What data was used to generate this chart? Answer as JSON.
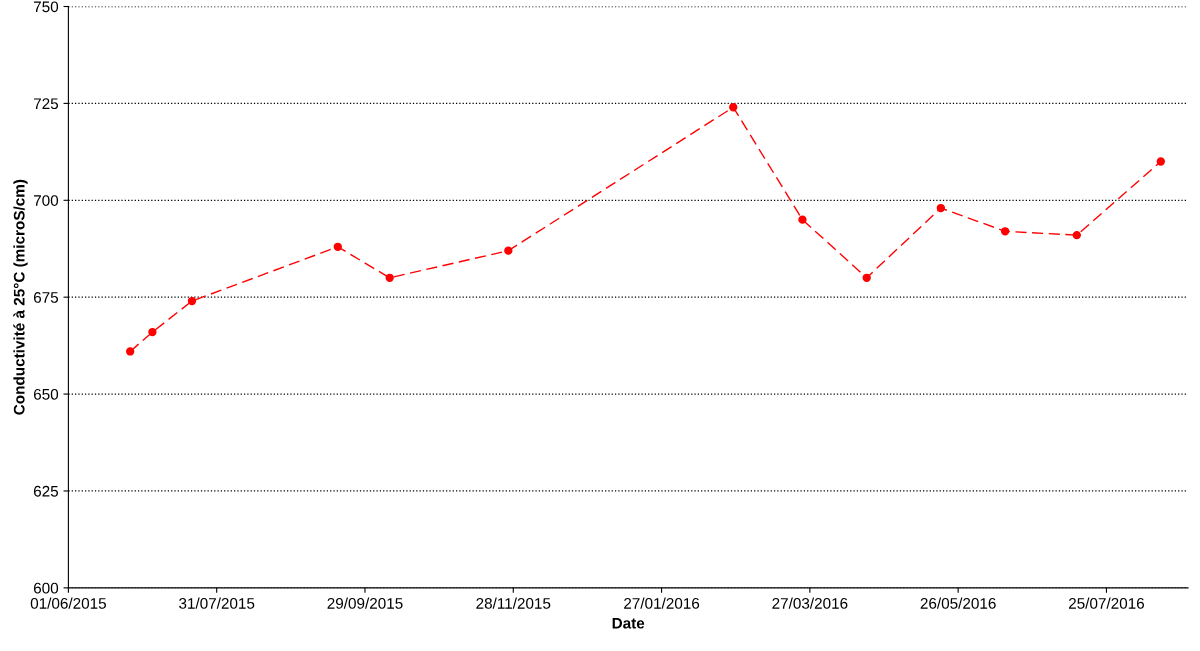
{
  "chart_data": {
    "type": "line",
    "xlabel": "Date",
    "ylabel": "Conductivité à 25°C (microS/cm)",
    "x": [
      "2015-06-26",
      "2015-07-05",
      "2015-07-21",
      "2015-09-18",
      "2015-10-09",
      "2015-11-26",
      "2016-02-25",
      "2016-03-24",
      "2016-04-19",
      "2016-05-19",
      "2016-06-14",
      "2016-07-13",
      "2016-08-16"
    ],
    "series": [
      {
        "color": "#ff0000",
        "values": [
          661,
          666,
          674,
          688,
          680,
          687,
          724,
          695,
          680,
          698,
          692,
          691,
          710
        ]
      }
    ],
    "xlim": [
      "2015-06-01",
      "2016-08-27"
    ],
    "xticks": [
      {
        "value": "2015-06-01",
        "label": "01/06/2015"
      },
      {
        "value": "2015-07-31",
        "label": "31/07/2015"
      },
      {
        "value": "2015-09-29",
        "label": "29/09/2015"
      },
      {
        "value": "2015-11-28",
        "label": "28/11/2015"
      },
      {
        "value": "2016-01-27",
        "label": "27/01/2016"
      },
      {
        "value": "2016-03-27",
        "label": "27/03/2016"
      },
      {
        "value": "2016-05-26",
        "label": "26/05/2016"
      },
      {
        "value": "2016-07-25",
        "label": "25/07/2016"
      }
    ],
    "ylim": [
      600,
      750
    ],
    "yticks": [
      600,
      625,
      650,
      675,
      700,
      725,
      750
    ],
    "grid": "y",
    "marker": "circle",
    "line_style": "dashed"
  }
}
